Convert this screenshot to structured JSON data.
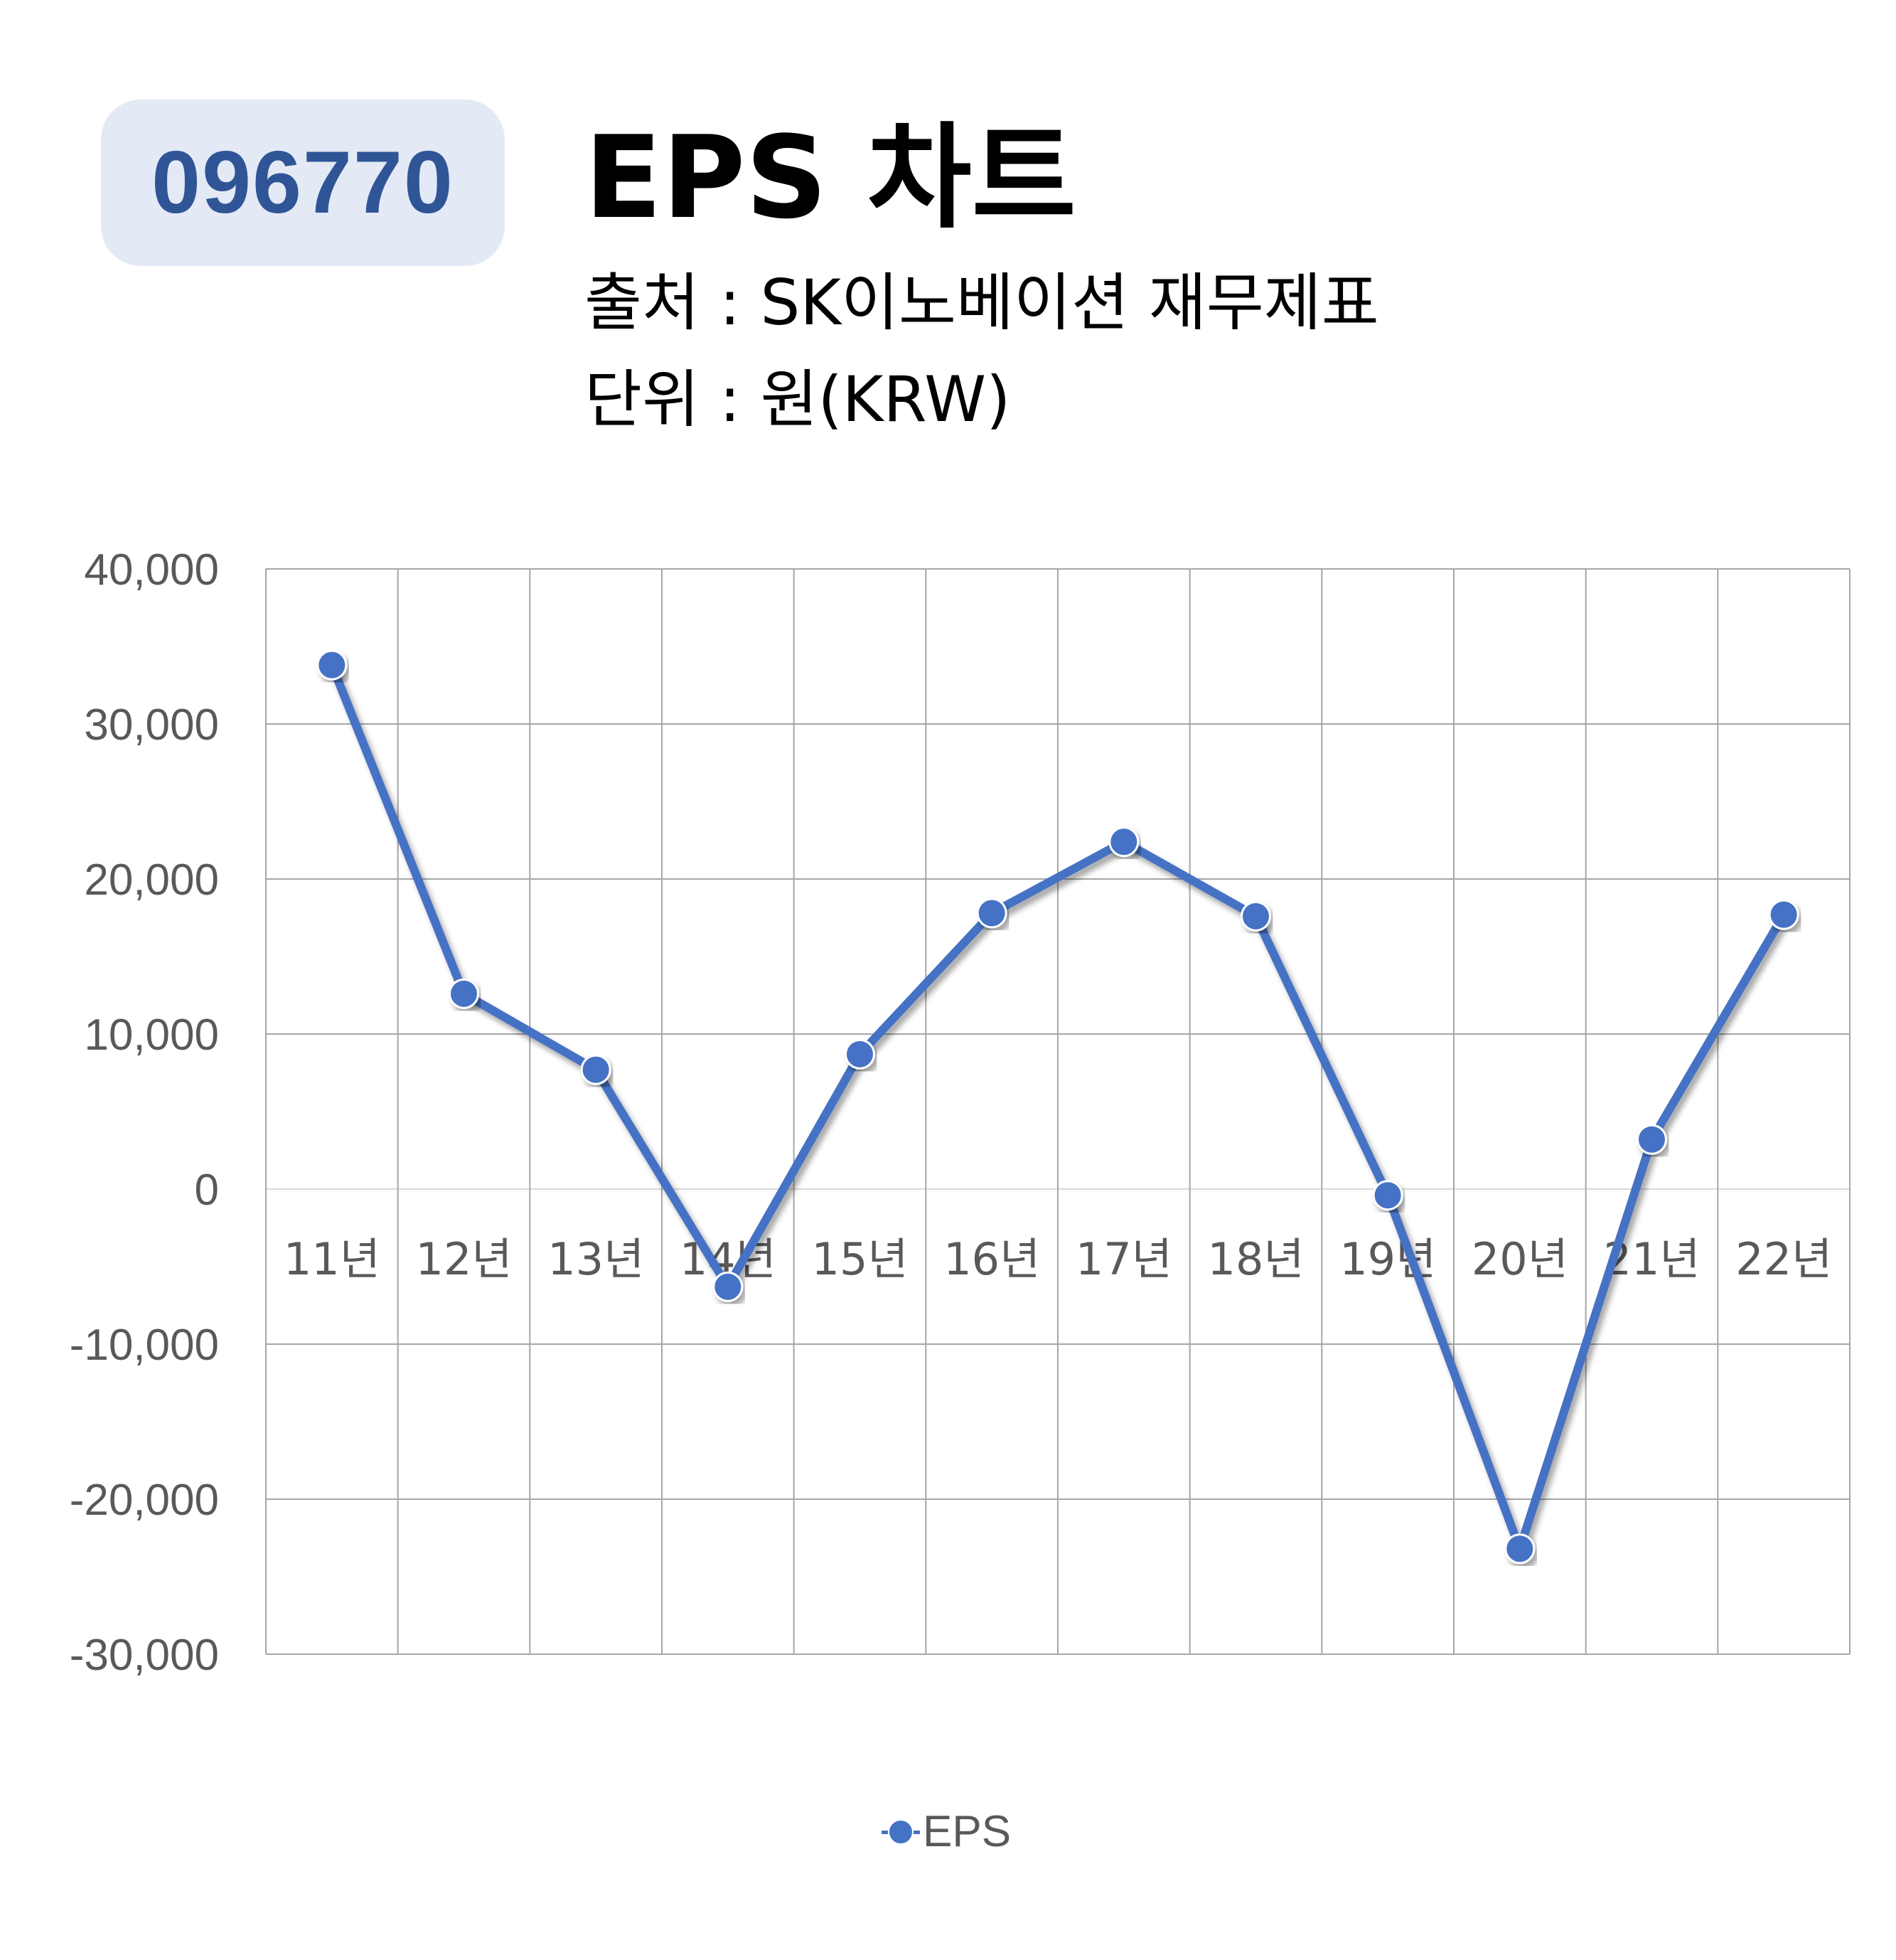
{
  "header": {
    "ticker": "096770",
    "title": "EPS 차트",
    "source_line": "출처 : SK이노베이션 재무제표",
    "unit_line": "단위 : 원(KRW)"
  },
  "colors": {
    "series": "#4472c4",
    "ticker_bg": "#e3e9f5",
    "ticker_text": "#2f5597",
    "grid": "#a6a6a6",
    "axis_text": "#595959"
  },
  "chart_data": {
    "type": "line",
    "title": "EPS 차트",
    "xlabel": "",
    "ylabel": "",
    "categories": [
      "11년",
      "12년",
      "13년",
      "14년",
      "15년",
      "16년",
      "17년",
      "18년",
      "19년",
      "20년",
      "21년",
      "22년"
    ],
    "series": [
      {
        "name": "EPS",
        "values": [
          33800,
          12600,
          7700,
          -6300,
          8700,
          17800,
          22400,
          17600,
          -400,
          -23200,
          3200,
          17700
        ]
      }
    ],
    "ylim": [
      -30000,
      40000
    ],
    "yticks": [
      40000,
      30000,
      20000,
      10000,
      0,
      -10000,
      -20000,
      -30000
    ],
    "ytick_labels": [
      "40,000",
      "30,000",
      "20,000",
      "10,000",
      "0",
      "-10,000",
      "-20,000",
      "-30,000"
    ],
    "grid": true,
    "legend_position": "bottom"
  }
}
